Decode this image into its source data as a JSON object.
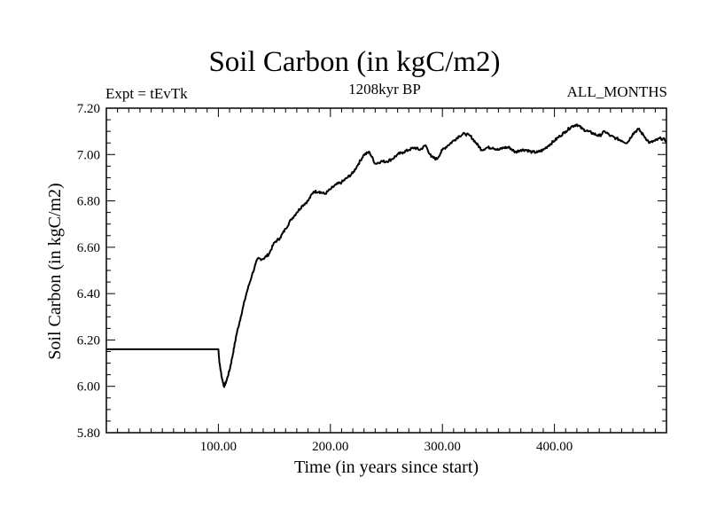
{
  "chart_data": {
    "type": "line",
    "title": "Soil Carbon (in kgC/m2)",
    "subtitle": "1208kyr BP",
    "annotation_left": "Expt = tEvTk",
    "annotation_right": "ALL_MONTHS",
    "xlabel": "Time (in years since start)",
    "ylabel": "Soil Carbon (in kgC/m2)",
    "xlim": [
      0,
      500
    ],
    "ylim": [
      5.8,
      7.2
    ],
    "xticks": [
      100,
      200,
      300,
      400
    ],
    "xtick_labels": [
      "100.00",
      "200.00",
      "300.00",
      "400.00"
    ],
    "yticks": [
      5.8,
      6.0,
      6.2,
      6.4,
      6.6,
      6.8,
      7.0,
      7.2
    ],
    "ytick_labels": [
      "5.80",
      "6.00",
      "6.20",
      "6.40",
      "6.60",
      "6.80",
      "7.00",
      "7.20"
    ],
    "grid": false,
    "series": [
      {
        "name": "Soil Carbon",
        "color": "#000000",
        "x": [
          0,
          99,
          100,
          101,
          103,
          105,
          107,
          110,
          113,
          116,
          120,
          125,
          130,
          135,
          140,
          145,
          150,
          155,
          160,
          165,
          170,
          175,
          180,
          185,
          190,
          195,
          200,
          205,
          210,
          215,
          220,
          225,
          230,
          235,
          240,
          245,
          250,
          255,
          260,
          265,
          270,
          275,
          280,
          285,
          290,
          295,
          300,
          305,
          310,
          315,
          320,
          325,
          330,
          335,
          340,
          345,
          350,
          355,
          360,
          365,
          370,
          375,
          380,
          385,
          390,
          395,
          400,
          405,
          410,
          415,
          420,
          425,
          430,
          435,
          440,
          445,
          450,
          455,
          460,
          465,
          470,
          475,
          480,
          485,
          490,
          495,
          500
        ],
        "values": [
          6.16,
          6.16,
          6.16,
          6.1,
          6.04,
          6.0,
          6.02,
          6.07,
          6.14,
          6.22,
          6.3,
          6.4,
          6.48,
          6.55,
          6.55,
          6.57,
          6.62,
          6.64,
          6.68,
          6.72,
          6.75,
          6.78,
          6.8,
          6.84,
          6.84,
          6.83,
          6.85,
          6.87,
          6.88,
          6.9,
          6.92,
          6.96,
          7.0,
          7.01,
          6.96,
          6.97,
          6.97,
          6.98,
          7.0,
          7.01,
          7.02,
          7.03,
          7.02,
          7.04,
          6.99,
          6.98,
          7.02,
          7.04,
          7.06,
          7.08,
          7.09,
          7.08,
          7.05,
          7.02,
          7.03,
          7.03,
          7.02,
          7.03,
          7.03,
          7.01,
          7.02,
          7.02,
          7.01,
          7.01,
          7.02,
          7.04,
          7.06,
          7.08,
          7.1,
          7.12,
          7.13,
          7.11,
          7.1,
          7.09,
          7.08,
          7.1,
          7.08,
          7.07,
          7.06,
          7.05,
          7.09,
          7.11,
          7.08,
          7.05,
          7.06,
          7.07,
          7.06
        ]
      }
    ]
  }
}
